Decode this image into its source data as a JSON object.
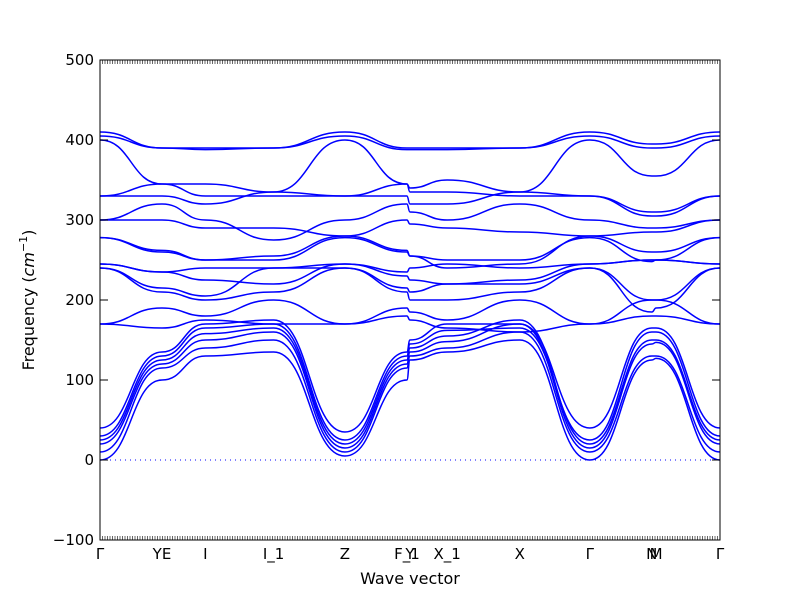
{
  "chart_data": {
    "type": "line",
    "xlabel": "Wave vector",
    "ylabel_prefix": "Frequency (",
    "ylabel_unit_base": "cm",
    "ylabel_unit_exp": "−1",
    "ylabel_suffix": ")",
    "ylim": [
      -100,
      500
    ],
    "yticks": [
      -100,
      0,
      100,
      200,
      300,
      400,
      500
    ],
    "grid": false,
    "zero_line": true,
    "line_color": "#0000ff",
    "zero_line_color": "#0000ff",
    "k_points": [
      {
        "label": "Γ",
        "x": 0.0
      },
      {
        "label": "YE",
        "x": 0.1
      },
      {
        "label": "I",
        "x": 0.17
      },
      {
        "label": "I_1",
        "x": 0.28
      },
      {
        "label": "Z",
        "x": 0.395
      },
      {
        "label": "F_1",
        "x": 0.495
      },
      {
        "label": "Y",
        "x": 0.5
      },
      {
        "label": "X_1",
        "x": 0.56
      },
      {
        "label": "X",
        "x": 0.677
      },
      {
        "label": "Γ",
        "x": 0.79
      },
      {
        "label": "N",
        "x": 0.89
      },
      {
        "label": "M",
        "x": 0.897
      },
      {
        "label": "Γ",
        "x": 1.0
      }
    ],
    "series": [
      {
        "values": [
          0,
          100,
          130,
          135,
          5,
          100,
          125,
          135,
          150,
          0,
          125,
          127,
          0
        ]
      },
      {
        "values": [
          10,
          115,
          140,
          150,
          10,
          115,
          130,
          140,
          160,
          10,
          130,
          130,
          10
        ]
      },
      {
        "values": [
          20,
          120,
          150,
          160,
          15,
          120,
          135,
          148,
          170,
          15,
          145,
          147,
          20
        ]
      },
      {
        "values": [
          25,
          125,
          158,
          165,
          20,
          125,
          140,
          155,
          175,
          20,
          150,
          150,
          25
        ]
      },
      {
        "values": [
          30,
          130,
          165,
          170,
          25,
          130,
          145,
          162,
          165,
          25,
          160,
          160,
          30
        ]
      },
      {
        "values": [
          40,
          135,
          170,
          175,
          35,
          135,
          150,
          170,
          170,
          40,
          165,
          165,
          40
        ]
      },
      {
        "values": [
          170,
          165,
          175,
          170,
          170,
          180,
          175,
          165,
          160,
          170,
          180,
          180,
          170
        ]
      },
      {
        "values": [
          170,
          190,
          180,
          200,
          170,
          190,
          185,
          175,
          200,
          170,
          200,
          200,
          170
        ]
      },
      {
        "values": [
          240,
          210,
          200,
          210,
          240,
          210,
          200,
          200,
          210,
          240,
          185,
          190,
          240
        ]
      },
      {
        "values": [
          240,
          215,
          205,
          240,
          240,
          215,
          210,
          220,
          220,
          240,
          200,
          200,
          240
        ]
      },
      {
        "values": [
          245,
          235,
          225,
          220,
          245,
          230,
          225,
          220,
          225,
          245,
          250,
          250,
          245
        ]
      },
      {
        "values": [
          245,
          235,
          240,
          240,
          245,
          235,
          240,
          245,
          240,
          245,
          250,
          250,
          245
        ]
      },
      {
        "values": [
          278,
          260,
          250,
          250,
          278,
          260,
          255,
          250,
          250,
          278,
          248,
          250,
          278
        ]
      },
      {
        "values": [
          278,
          262,
          250,
          255,
          280,
          262,
          255,
          240,
          245,
          280,
          260,
          260,
          278
        ]
      },
      {
        "values": [
          300,
          300,
          290,
          290,
          280,
          300,
          295,
          290,
          285,
          280,
          285,
          285,
          300
        ]
      },
      {
        "values": [
          300,
          320,
          300,
          275,
          300,
          320,
          310,
          300,
          320,
          300,
          290,
          290,
          300
        ]
      },
      {
        "values": [
          330,
          330,
          320,
          335,
          330,
          330,
          320,
          320,
          335,
          330,
          305,
          305,
          330
        ]
      },
      {
        "values": [
          330,
          345,
          330,
          330,
          330,
          345,
          335,
          335,
          330,
          330,
          310,
          310,
          330
        ]
      },
      {
        "values": [
          400,
          345,
          345,
          335,
          400,
          345,
          340,
          350,
          335,
          400,
          355,
          355,
          400
        ]
      },
      {
        "values": [
          405,
          390,
          388,
          390,
          405,
          388,
          388,
          388,
          390,
          405,
          390,
          390,
          405
        ]
      },
      {
        "values": [
          410,
          390,
          390,
          390,
          410,
          390,
          390,
          390,
          390,
          410,
          395,
          395,
          410
        ]
      }
    ]
  }
}
